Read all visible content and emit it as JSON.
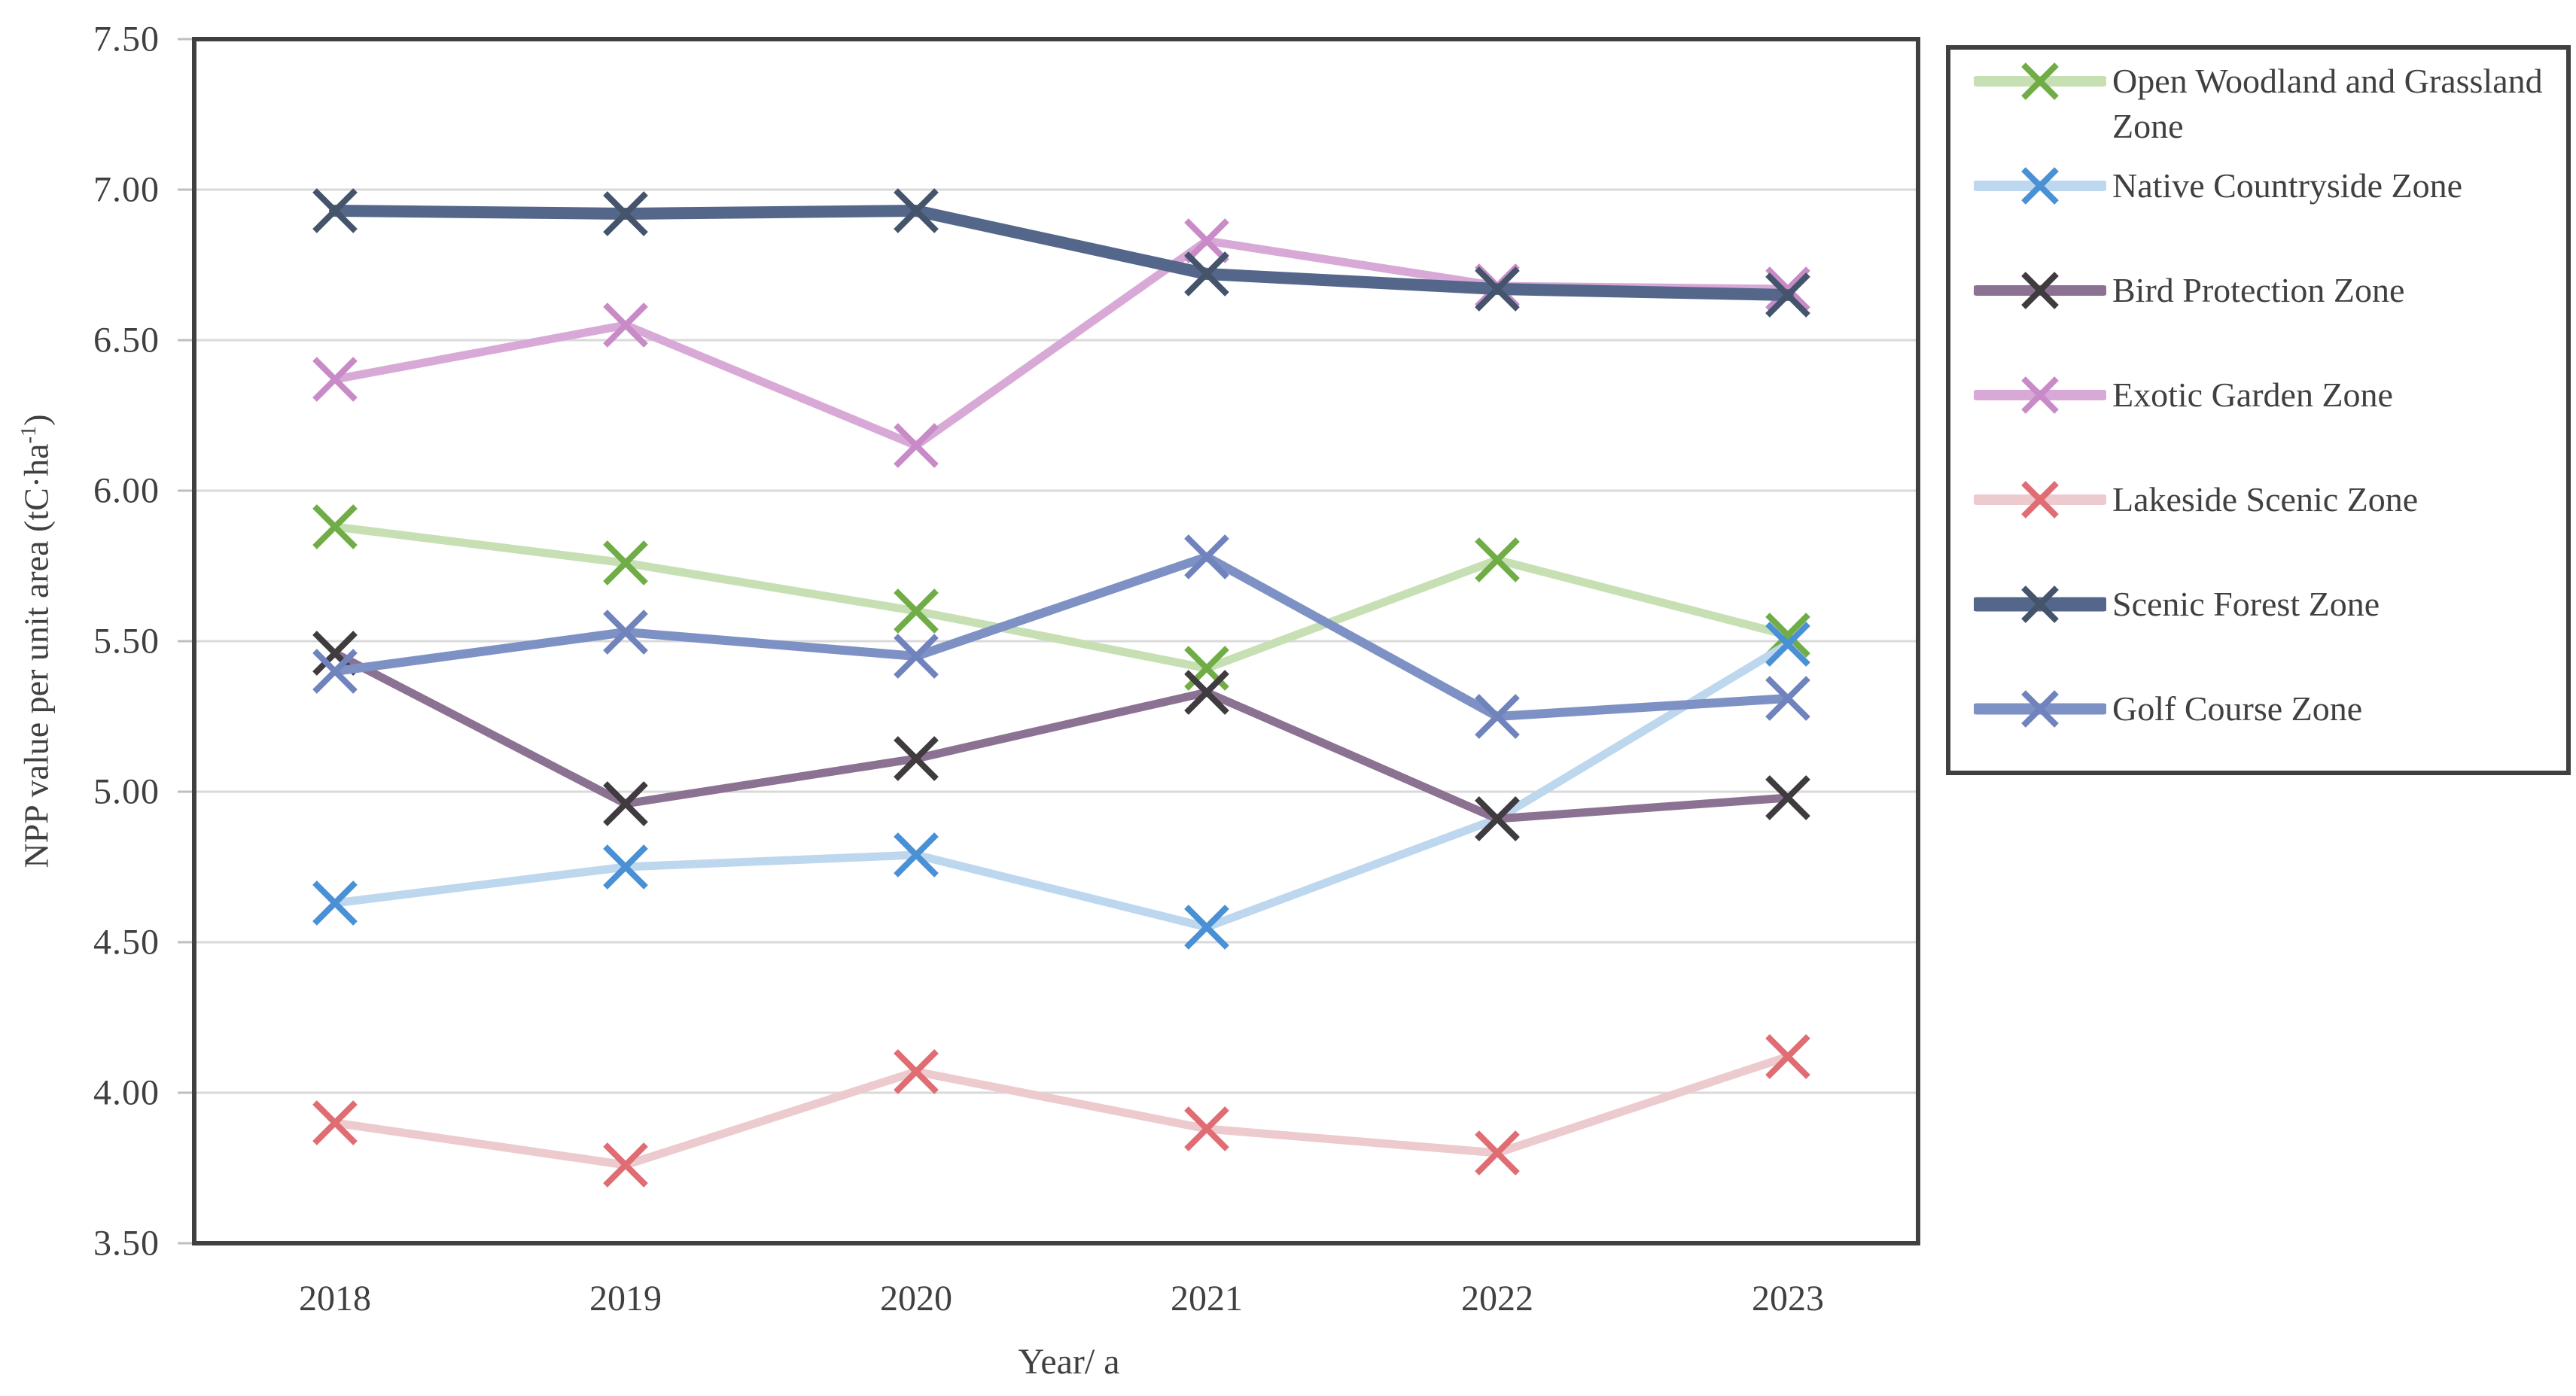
{
  "chart_data": {
    "type": "line",
    "x": [
      "2018",
      "2019",
      "2020",
      "2021",
      "2022",
      "2023"
    ],
    "xlabel": "Year/ a",
    "ylabel": {
      "text": "NPP value per unit area (tC·ha",
      "sup": "-1",
      "end": ")"
    },
    "ylim": [
      3.5,
      7.5
    ],
    "ytick_step": 0.5,
    "grid": "horizontal",
    "legend_position": "right",
    "marker": "x",
    "series": [
      {
        "name": "Open Woodland and Grassland Zone",
        "line_color": "#c6e0b4",
        "marker_color": "#70ad47",
        "line_width": 11,
        "values": [
          5.88,
          5.76,
          5.6,
          5.41,
          5.77,
          5.52
        ]
      },
      {
        "name": "Native Countryside Zone",
        "line_color": "#bdd7ee",
        "marker_color": "#4a90d5",
        "line_width": 11,
        "values": [
          4.63,
          4.75,
          4.79,
          4.55,
          4.91,
          5.49
        ]
      },
      {
        "name": "Bird Protection Zone",
        "line_color": "#8c7292",
        "marker_color": "#3f3b3f",
        "line_width": 11,
        "values": [
          5.46,
          4.96,
          5.11,
          5.33,
          4.91,
          4.98
        ]
      },
      {
        "name": "Exotic Garden Zone",
        "line_color": "#d8a9d6",
        "marker_color": "#c98bc8",
        "line_width": 11,
        "values": [
          6.37,
          6.55,
          6.15,
          6.83,
          6.68,
          6.67
        ]
      },
      {
        "name": "Lakeside Scenic Zone",
        "line_color": "#eccacd",
        "marker_color": "#df6d73",
        "line_width": 11,
        "values": [
          3.9,
          3.76,
          4.07,
          3.88,
          3.8,
          4.12
        ]
      },
      {
        "name": "Scenic Forest Zone",
        "line_color": "#54678b",
        "marker_color": "#44546a",
        "line_width": 16,
        "values": [
          6.93,
          6.92,
          6.93,
          6.72,
          6.67,
          6.65
        ]
      },
      {
        "name": "Golf Course Zone",
        "line_color": "#7e91c5",
        "marker_color": "#7083bd",
        "line_width": 12,
        "values": [
          5.4,
          5.53,
          5.45,
          5.78,
          5.25,
          5.31
        ]
      }
    ],
    "colors": {
      "frame": "#404040",
      "gridline": "#d9d9d9",
      "tick": "#bfbfbf",
      "text": "#404040",
      "background": "#ffffff"
    }
  }
}
